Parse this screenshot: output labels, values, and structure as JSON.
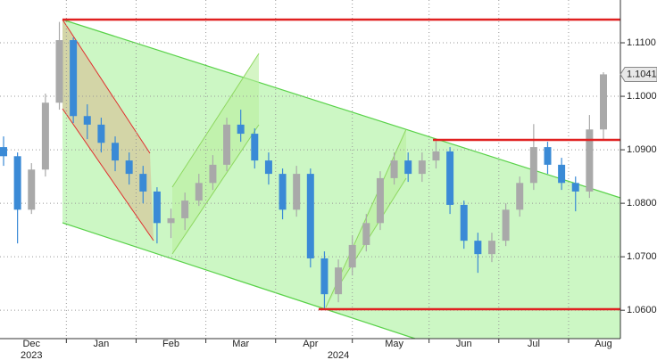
{
  "chart_data": {
    "type": "candlestick",
    "categories": [
      null,
      null,
      "Dec",
      null,
      null,
      null,
      null,
      "Jan",
      null,
      null,
      null,
      null,
      "Feb",
      null,
      null,
      null,
      null,
      "Mar",
      null,
      null,
      null,
      null,
      "Apr",
      null,
      null,
      null,
      null,
      null,
      "May",
      null,
      null,
      null,
      null,
      "Jun",
      null,
      null,
      null,
      null,
      "Jul",
      null,
      null,
      null,
      null,
      "Aug"
    ],
    "year_labels": [
      null,
      null,
      "2023",
      null,
      null,
      null,
      null,
      null,
      null,
      null,
      null,
      null,
      null,
      null,
      null,
      null,
      null,
      null,
      null,
      null,
      null,
      null,
      null,
      null,
      "2024",
      null,
      null,
      null,
      null,
      null,
      null,
      null,
      null,
      null,
      null,
      null,
      null,
      null,
      null,
      null,
      null,
      null,
      null,
      null
    ],
    "open": [
      1.0905,
      1.0888,
      1.0788,
      1.0863,
      1.0988,
      1.1105,
      1.0963,
      1.0947,
      1.0913,
      1.088,
      1.0855,
      1.0822,
      1.0763,
      1.0772,
      1.0805,
      1.0838,
      1.0872,
      1.0947,
      1.093,
      1.088,
      1.0855,
      1.0788,
      1.0855,
      1.0697,
      1.063,
      1.068,
      1.0722,
      1.0763,
      1.0847,
      1.088,
      1.0855,
      1.088,
      1.0897,
      1.0797,
      1.073,
      1.0705,
      1.073,
      1.0788,
      1.0838,
      1.0905,
      1.0872,
      1.0838,
      1.0822,
      1.0938
    ],
    "high": [
      1.0925,
      1.0895,
      1.0875,
      1.1005,
      1.1139,
      1.111,
      1.0985,
      1.096,
      1.0925,
      1.0895,
      1.087,
      1.083,
      1.079,
      1.082,
      1.0855,
      1.089,
      1.096,
      1.0975,
      1.094,
      1.0895,
      1.0865,
      1.087,
      1.0865,
      1.071,
      1.0695,
      1.074,
      1.078,
      1.086,
      1.0895,
      1.0895,
      1.0895,
      1.0916,
      1.0905,
      1.0805,
      1.0745,
      1.0745,
      1.08,
      1.085,
      1.0948,
      1.0915,
      1.0885,
      1.085,
      1.0965,
      1.1045
    ],
    "low": [
      1.087,
      1.0725,
      1.078,
      1.085,
      1.0975,
      1.095,
      1.092,
      1.0895,
      1.086,
      1.0835,
      1.08,
      1.0725,
      1.0735,
      1.075,
      1.0795,
      1.0825,
      1.086,
      1.0915,
      1.0865,
      1.0835,
      1.077,
      1.0775,
      1.068,
      1.0601,
      1.0615,
      1.0665,
      1.071,
      1.075,
      1.0835,
      1.084,
      1.084,
      1.0865,
      1.078,
      1.0715,
      1.067,
      1.069,
      1.072,
      1.0775,
      1.0825,
      1.0855,
      1.0825,
      1.0785,
      1.081,
      1.092
    ],
    "close": [
      1.0888,
      1.0788,
      1.0863,
      1.0988,
      1.1105,
      1.0963,
      1.0947,
      1.0913,
      1.088,
      1.0855,
      1.0822,
      1.0763,
      1.0772,
      1.0805,
      1.0838,
      1.0872,
      1.0947,
      1.093,
      1.088,
      1.0855,
      1.0788,
      1.0855,
      1.0697,
      1.063,
      1.068,
      1.0722,
      1.0763,
      1.0847,
      1.088,
      1.0855,
      1.088,
      1.0897,
      1.0797,
      1.073,
      1.0705,
      1.073,
      1.0788,
      1.0838,
      1.0905,
      1.0872,
      1.0838,
      1.0822,
      1.0938,
      1.1041
    ],
    "up_color": "#a9a9a9",
    "down_color": "#3a8ad6",
    "ylim": [
      1.0547,
      1.118
    ],
    "yticks": [
      {
        "value": 1.06,
        "label": "1.0600"
      },
      {
        "value": 1.07,
        "label": "1.0700"
      },
      {
        "value": 1.08,
        "label": "1.0800"
      },
      {
        "value": 1.09,
        "label": "1.0900"
      },
      {
        "value": 1.1,
        "label": "1.1000"
      },
      {
        "value": 1.11,
        "label": "1.1100"
      }
    ],
    "grid": true,
    "last_price": {
      "value": 1.1041,
      "label": "1.1041"
    }
  }
}
